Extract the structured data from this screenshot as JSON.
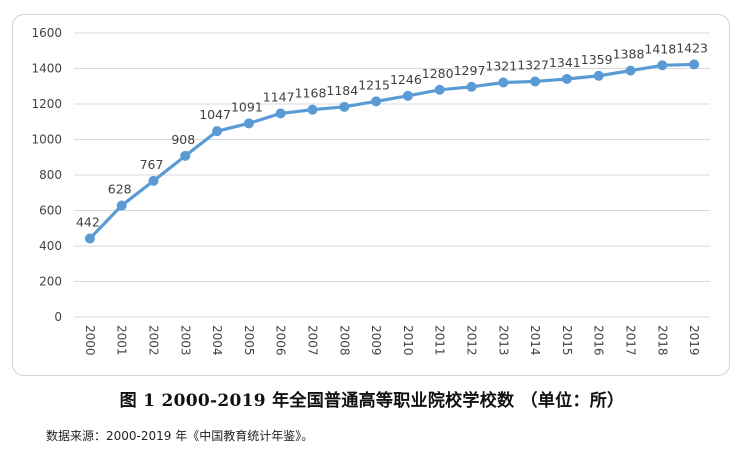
{
  "chart_data": {
    "type": "line",
    "categories": [
      "2000",
      "2001",
      "2002",
      "2003",
      "2004",
      "2005",
      "2006",
      "2007",
      "2008",
      "2009",
      "2010",
      "2011",
      "2012",
      "2013",
      "2014",
      "2015",
      "2016",
      "2017",
      "2018",
      "2019"
    ],
    "values": [
      442,
      628,
      767,
      908,
      1047,
      1091,
      1147,
      1168,
      1184,
      1215,
      1246,
      1280,
      1297,
      1321,
      1327,
      1341,
      1359,
      1388,
      1418,
      1423
    ],
    "ylim": [
      0,
      1600
    ],
    "yticks": [
      0,
      200,
      400,
      600,
      800,
      1000,
      1200,
      1400,
      1600
    ],
    "grid": true,
    "series_color": "#5b9bd5",
    "grid_color": "#d9d9d9"
  },
  "caption": "图 1 2000-2019 年全国普通高等职业院校学校数 （单位：所）",
  "source": "数据来源：2000-2019 年《中国教育统计年鉴》。"
}
